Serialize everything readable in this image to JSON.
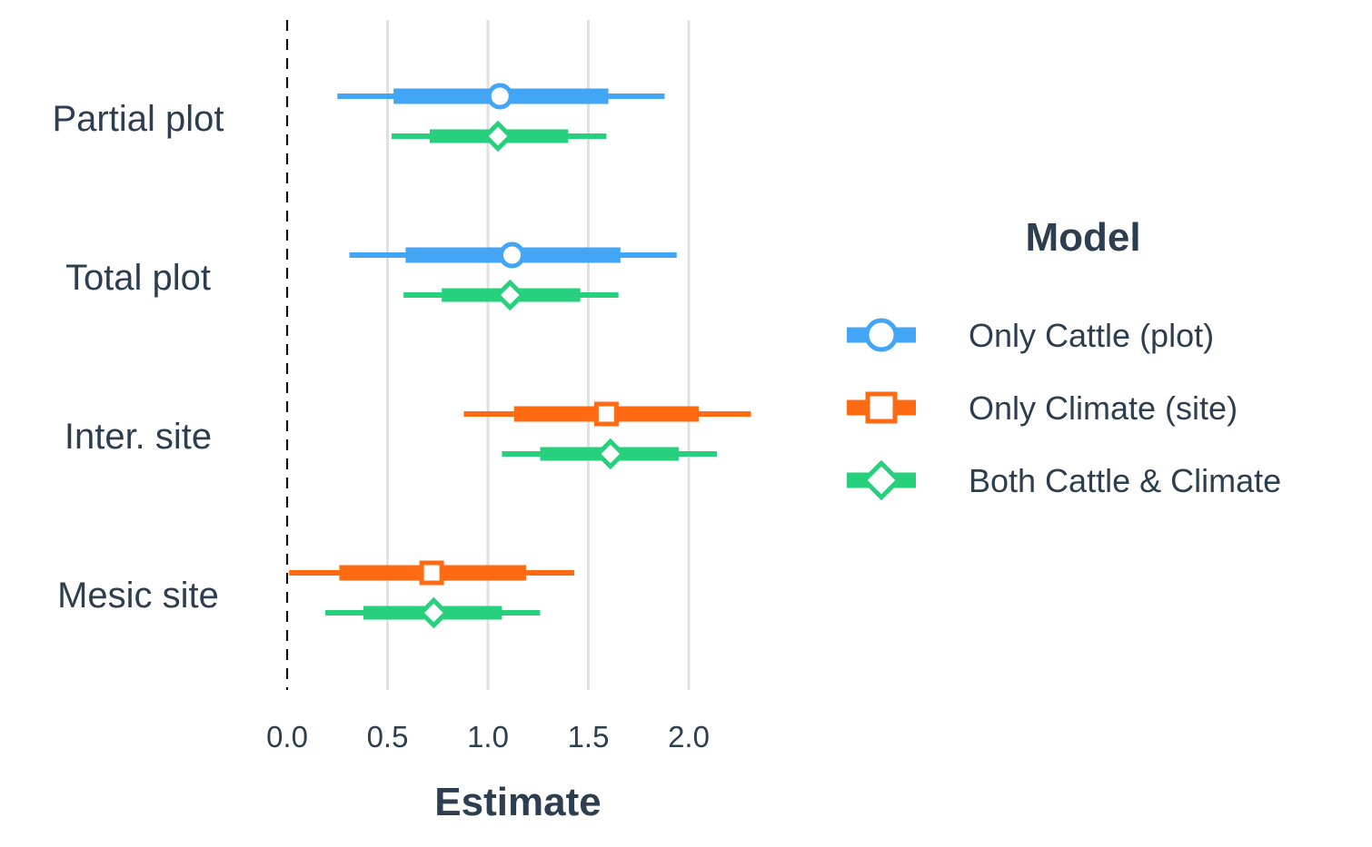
{
  "chart_data": {
    "type": "interval",
    "xlabel": "Estimate",
    "xlim": [
      0,
      2.35
    ],
    "xticks": [
      "0.0",
      "0.5",
      "1.0",
      "1.5",
      "2.0"
    ],
    "grid": "vertical",
    "reference_line": 0,
    "categories": [
      "Partial plot",
      "Total plot",
      "Inter. site",
      "Mesic site"
    ],
    "legend_title": "Model",
    "legend_position": "right",
    "series": [
      {
        "name": "Only Cattle (plot)",
        "color": "#42a5f5",
        "marker": "circle",
        "points": [
          {
            "category": "Partial plot",
            "estimate": 1.06,
            "inner": [
              0.53,
              1.6
            ],
            "outer": [
              0.25,
              1.88
            ]
          },
          {
            "category": "Total plot",
            "estimate": 1.12,
            "inner": [
              0.59,
              1.66
            ],
            "outer": [
              0.31,
              1.94
            ]
          }
        ]
      },
      {
        "name": "Only Climate (site)",
        "color": "#ff6a13",
        "marker": "square",
        "points": [
          {
            "category": "Inter. site",
            "estimate": 1.59,
            "inner": [
              1.13,
              2.05
            ],
            "outer": [
              0.88,
              2.31
            ]
          },
          {
            "category": "Mesic site",
            "estimate": 0.72,
            "inner": [
              0.26,
              1.19
            ],
            "outer": [
              0.01,
              1.43
            ]
          }
        ]
      },
      {
        "name": "Both Cattle & Climate",
        "color": "#26d07c",
        "marker": "diamond",
        "points": [
          {
            "category": "Partial plot",
            "estimate": 1.05,
            "inner": [
              0.71,
              1.4
            ],
            "outer": [
              0.52,
              1.59
            ]
          },
          {
            "category": "Total plot",
            "estimate": 1.11,
            "inner": [
              0.77,
              1.46
            ],
            "outer": [
              0.58,
              1.65
            ]
          },
          {
            "category": "Inter. site",
            "estimate": 1.61,
            "inner": [
              1.26,
              1.95
            ],
            "outer": [
              1.07,
              2.14
            ]
          },
          {
            "category": "Mesic site",
            "estimate": 0.73,
            "inner": [
              0.38,
              1.07
            ],
            "outer": [
              0.19,
              1.26
            ]
          }
        ]
      }
    ]
  }
}
